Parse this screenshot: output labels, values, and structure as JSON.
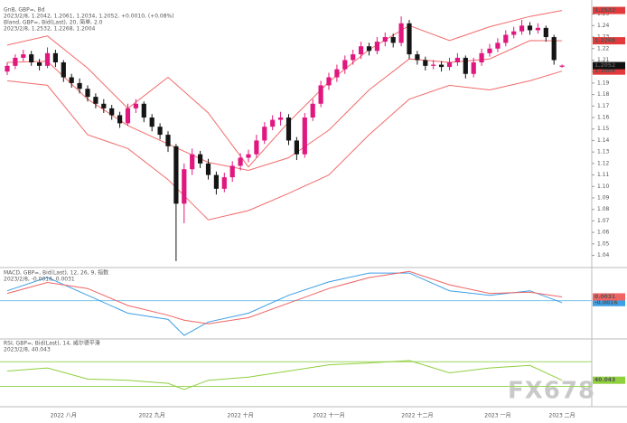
{
  "watermark": "FX678",
  "chart_data": [
    {
      "type": "candlestick",
      "title": "GnB, GBP=, Bd",
      "subtitle": "2023/2/8, 1.2042, 1.2061, 1.2034, 1.2052, +0.0010, (+0.08%)",
      "categories": [
        null,
        null,
        null,
        null,
        null,
        null,
        null,
        "2022 八月",
        null,
        null,
        null,
        null,
        null,
        null,
        null,
        null,
        null,
        null,
        "2022 九月",
        null,
        null,
        null,
        null,
        null,
        null,
        null,
        null,
        null,
        null,
        "2022 十月",
        null,
        null,
        null,
        null,
        null,
        null,
        null,
        null,
        null,
        null,
        "2022 十一月",
        null,
        null,
        null,
        null,
        null,
        null,
        null,
        null,
        null,
        null,
        "2022 十二月",
        null,
        null,
        null,
        null,
        null,
        null,
        null,
        null,
        null,
        "2023 一月",
        null,
        null,
        null,
        null,
        null,
        null,
        null,
        "2023 二月"
      ],
      "open": [
        1.2,
        1.205,
        1.212,
        1.215,
        1.208,
        1.205,
        1.216,
        1.208,
        1.195,
        1.19,
        1.185,
        1.178,
        1.172,
        1.168,
        1.162,
        1.155,
        1.168,
        1.172,
        1.16,
        1.152,
        1.145,
        1.135,
        1.085,
        1.115,
        1.128,
        1.12,
        1.11,
        1.098,
        1.108,
        1.118,
        1.125,
        1.128,
        1.14,
        1.152,
        1.158,
        1.16,
        1.14,
        1.128,
        1.16,
        1.172,
        1.188,
        1.195,
        1.202,
        1.21,
        1.215,
        1.222,
        1.218,
        1.226,
        1.23,
        1.225,
        1.242,
        1.215,
        1.21,
        1.205,
        1.206,
        1.204,
        1.208,
        1.212,
        1.198,
        1.208,
        1.216,
        1.22,
        1.225,
        1.232,
        1.235,
        1.24,
        1.236,
        1.238,
        1.23,
        1.2042
      ],
      "high": [
        1.208,
        1.215,
        1.219,
        1.218,
        1.211,
        1.221,
        1.219,
        1.21,
        1.198,
        1.194,
        1.188,
        1.181,
        1.176,
        1.171,
        1.165,
        1.172,
        1.176,
        1.174,
        1.163,
        1.155,
        1.148,
        1.137,
        1.12,
        1.133,
        1.131,
        1.124,
        1.113,
        1.112,
        1.122,
        1.129,
        1.132,
        1.145,
        1.156,
        1.162,
        1.165,
        1.163,
        1.143,
        1.164,
        1.176,
        1.192,
        1.199,
        1.206,
        1.214,
        1.219,
        1.226,
        1.225,
        1.23,
        1.234,
        1.233,
        1.248,
        1.245,
        1.218,
        1.213,
        1.21,
        1.209,
        1.212,
        1.216,
        1.214,
        1.212,
        1.22,
        1.224,
        1.229,
        1.236,
        1.239,
        1.245,
        1.243,
        1.242,
        1.24,
        1.232,
        1.2061
      ],
      "low": [
        1.197,
        1.202,
        1.209,
        1.205,
        1.201,
        1.203,
        1.204,
        1.191,
        1.186,
        1.181,
        1.174,
        1.168,
        1.164,
        1.158,
        1.151,
        1.153,
        1.164,
        1.156,
        1.148,
        1.141,
        1.13,
        1.035,
        1.068,
        1.11,
        1.116,
        1.106,
        1.093,
        1.095,
        1.104,
        1.114,
        1.121,
        1.125,
        1.137,
        1.149,
        1.153,
        1.136,
        1.123,
        1.125,
        1.157,
        1.169,
        1.184,
        1.191,
        1.198,
        1.206,
        1.211,
        1.214,
        1.215,
        1.222,
        1.221,
        1.222,
        1.211,
        1.206,
        1.201,
        1.202,
        1.2,
        1.201,
        1.205,
        1.194,
        1.195,
        1.205,
        1.213,
        1.217,
        1.222,
        1.229,
        1.232,
        1.232,
        1.233,
        1.226,
        1.206,
        1.2034
      ],
      "close": [
        1.205,
        1.212,
        1.215,
        1.208,
        1.205,
        1.216,
        1.208,
        1.195,
        1.19,
        1.185,
        1.178,
        1.172,
        1.168,
        1.162,
        1.155,
        1.168,
        1.172,
        1.16,
        1.152,
        1.145,
        1.135,
        1.085,
        1.115,
        1.128,
        1.12,
        1.11,
        1.098,
        1.108,
        1.118,
        1.125,
        1.128,
        1.14,
        1.152,
        1.158,
        1.16,
        1.14,
        1.128,
        1.16,
        1.172,
        1.188,
        1.195,
        1.202,
        1.21,
        1.215,
        1.222,
        1.218,
        1.226,
        1.23,
        1.225,
        1.242,
        1.215,
        1.21,
        1.205,
        1.206,
        1.204,
        1.208,
        1.212,
        1.198,
        1.208,
        1.216,
        1.22,
        1.225,
        1.232,
        1.235,
        1.24,
        1.236,
        1.238,
        1.23,
        1.21,
        1.2052
      ],
      "up_color": "#e0177f",
      "down_color": "#151515",
      "ylim": [
        1.031,
        1.256
      ],
      "yticks": [
        1.04,
        1.05,
        1.06,
        1.07,
        1.08,
        1.09,
        {
          "value": 1.1,
          "label": "1.10"
        },
        1.11,
        1.12,
        1.13,
        1.14,
        1.15,
        1.16,
        1.17,
        1.18,
        1.19,
        {
          "value": 1.2,
          "label": "1.20"
        },
        1.21,
        1.22,
        1.23,
        1.24,
        1.25
      ],
      "overlay": {
        "title": "Bland, GBP=, Bid(Last), 20, 简单, 2.0",
        "subtitle": "2023/2/8, 1.2532, 1.2268, 1.2004",
        "color": "#f26b6b",
        "x": [
          0,
          5,
          10,
          15,
          20,
          25,
          30,
          35,
          40,
          45,
          50,
          55,
          60,
          65,
          69
        ],
        "upper": [
          1.223,
          1.231,
          1.203,
          1.168,
          1.195,
          1.164,
          1.117,
          1.156,
          1.191,
          1.219,
          1.24,
          1.227,
          1.239,
          1.248,
          1.2532
        ],
        "middle": [
          1.208,
          1.209,
          1.176,
          1.153,
          1.137,
          1.121,
          1.114,
          1.125,
          1.149,
          1.184,
          1.211,
          1.208,
          1.211,
          1.227,
          1.2268
        ],
        "lower": [
          1.192,
          1.188,
          1.145,
          1.133,
          1.106,
          1.071,
          1.079,
          1.094,
          1.11,
          1.145,
          1.176,
          1.188,
          1.184,
          1.192,
          1.2004
        ]
      }
    },
    {
      "type": "line",
      "title": "MACD, GBP=, Bid(Last), 12, 26, 9, 指数",
      "subtitle": "2023/2/8, -0.0016, 0.0031",
      "x": [
        0,
        5,
        10,
        15,
        20,
        22,
        25,
        30,
        35,
        40,
        45,
        50,
        55,
        60,
        65,
        69
      ],
      "series": [
        {
          "color": "#3d9fe6",
          "values": [
            0.0081,
            0.0191,
            0.0044,
            -0.0103,
            -0.0154,
            -0.0286,
            -0.0176,
            -0.0103,
            0.0044,
            0.0154,
            0.0227,
            0.0227,
            0.0081,
            0.0044,
            0.0081,
            -0.0016
          ]
        },
        {
          "color": "#f06464",
          "values": [
            0.006,
            0.015,
            0.01,
            -0.004,
            -0.012,
            -0.016,
            -0.019,
            -0.014,
            -0.002,
            0.01,
            0.019,
            0.024,
            0.013,
            0.006,
            0.007,
            0.0031
          ]
        }
      ],
      "ylim": [
        -0.03,
        0.025
      ],
      "reference_lines": [
        0
      ],
      "reference_color": "#7cc2ec"
    },
    {
      "type": "line",
      "title": "RSI, GBP=, Bid(Last), 14, 威尔德平滑",
      "subtitle": "2023/2/8, 40.043",
      "x": [
        0,
        5,
        10,
        15,
        20,
        22,
        25,
        30,
        35,
        40,
        45,
        50,
        55,
        60,
        65,
        69
      ],
      "series": [
        {
          "color": "#8fd03e",
          "values": [
            55,
            60,
            42,
            40,
            35,
            25,
            40,
            45,
            55,
            65,
            68,
            72,
            52,
            60,
            64,
            40.043
          ]
        }
      ],
      "ylim": [
        3,
        104
      ],
      "reference_lines": [
        30,
        70
      ],
      "reference_color": "#9ed65e"
    }
  ]
}
